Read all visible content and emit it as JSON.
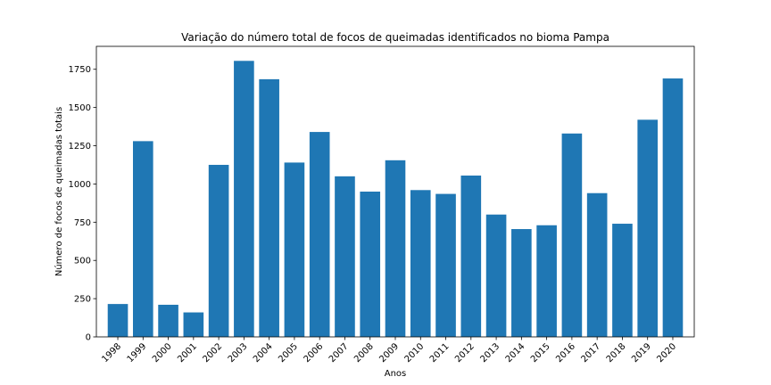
{
  "chart_data": {
    "type": "bar",
    "title": "Variação do número total de focos de queimadas identificados no bioma Pampa",
    "xlabel": "Anos",
    "ylabel": "Número de focos de queimadas totais",
    "categories": [
      "1998",
      "1999",
      "2000",
      "2001",
      "2002",
      "2003",
      "2004",
      "2005",
      "2006",
      "2007",
      "2008",
      "2009",
      "2010",
      "2011",
      "2012",
      "2013",
      "2014",
      "2015",
      "2016",
      "2017",
      "2018",
      "2019",
      "2020"
    ],
    "values": [
      215,
      1280,
      210,
      160,
      1125,
      1805,
      1685,
      1140,
      1340,
      1050,
      950,
      1155,
      960,
      935,
      1055,
      800,
      705,
      730,
      1330,
      940,
      740,
      1420,
      1690
    ],
    "ylim": [
      0,
      1900
    ],
    "yticks": [
      0,
      250,
      500,
      750,
      1000,
      1250,
      1500,
      1750
    ],
    "bar_color": "#1f77b4",
    "grid": false,
    "legend": "none"
  }
}
